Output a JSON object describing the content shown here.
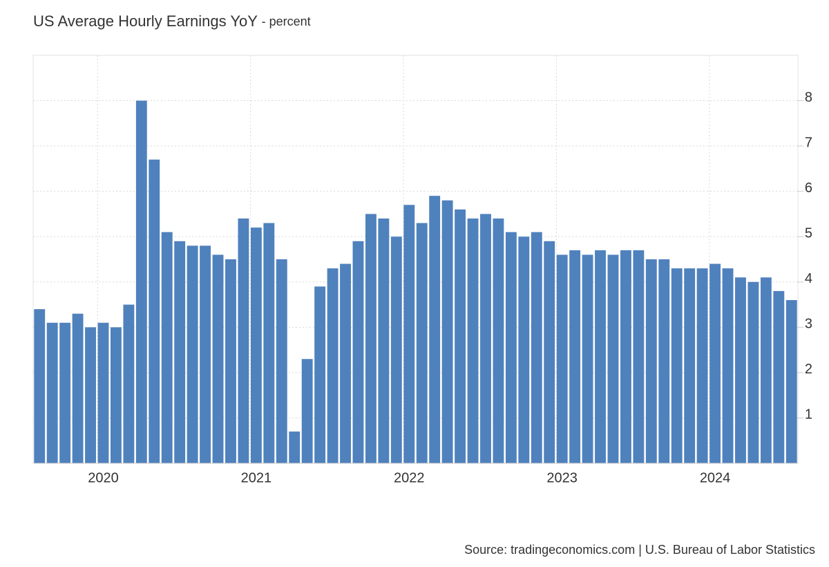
{
  "chart_data": {
    "type": "bar",
    "title": "US Average Hourly Earnings YoY",
    "subtitle": "- percent",
    "source": "Source: tradingeconomics.com | U.S. Bureau of Labor Statistics",
    "categories": [
      null,
      null,
      null,
      null,
      null,
      "2020",
      null,
      null,
      null,
      null,
      null,
      null,
      null,
      null,
      null,
      null,
      null,
      "2021",
      null,
      null,
      null,
      null,
      null,
      null,
      null,
      null,
      null,
      null,
      null,
      "2022",
      null,
      null,
      null,
      null,
      null,
      null,
      null,
      null,
      null,
      null,
      null,
      "2023",
      null,
      null,
      null,
      null,
      null,
      null,
      null,
      null,
      null,
      null,
      null,
      "2024",
      null,
      null,
      null,
      null,
      null,
      null
    ],
    "values": [
      3.4,
      3.1,
      3.1,
      3.3,
      3.0,
      3.1,
      3.0,
      3.5,
      8.0,
      6.7,
      5.1,
      4.9,
      4.8,
      4.8,
      4.6,
      4.5,
      5.4,
      5.2,
      5.3,
      4.5,
      0.7,
      2.3,
      3.9,
      4.3,
      4.4,
      4.9,
      5.5,
      5.4,
      5.0,
      5.7,
      5.3,
      5.9,
      5.8,
      5.6,
      5.4,
      5.5,
      5.4,
      5.1,
      5.0,
      5.1,
      4.9,
      4.6,
      4.7,
      4.6,
      4.7,
      4.6,
      4.7,
      4.7,
      4.5,
      4.5,
      4.3,
      4.3,
      4.3,
      4.4,
      4.3,
      4.1,
      4.0,
      4.1,
      3.8,
      3.6
    ],
    "color": "#4f81bd",
    "ylim": [
      0,
      9
    ],
    "yticks": [
      1,
      2,
      3,
      4,
      5,
      6,
      7,
      8
    ],
    "grid": true
  }
}
